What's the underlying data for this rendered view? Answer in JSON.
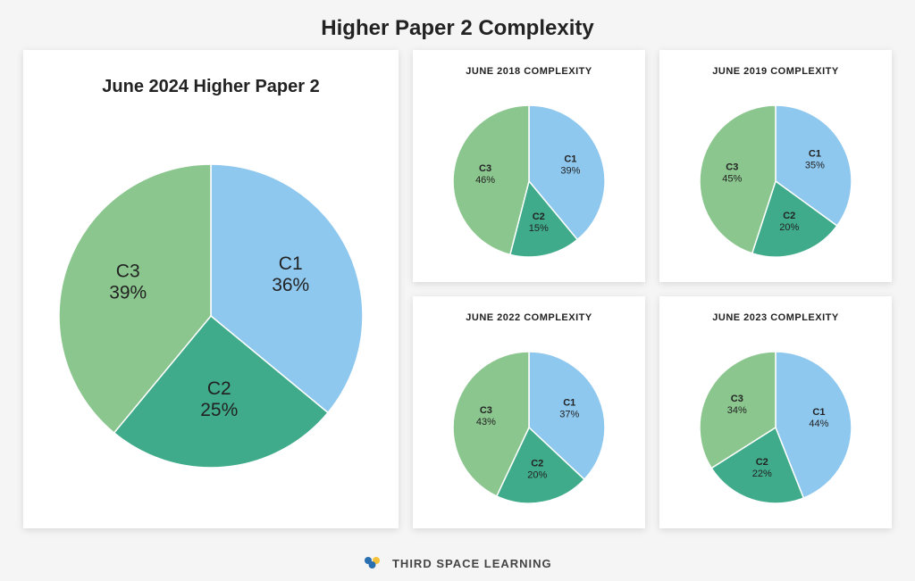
{
  "title": "Higher Paper 2 Complexity",
  "colors": {
    "c1": "#8fc8ef",
    "c2": "#3fab8a",
    "c3": "#8bc68e",
    "card_bg": "#ffffff",
    "page_bg": "#f5f5f5",
    "text": "#222222",
    "slice_border": "#ffffff"
  },
  "main_chart": {
    "title": "June 2024 Higher Paper 2",
    "type": "pie",
    "radius": 170,
    "title_fontsize": 20,
    "label_fontsize": 21,
    "slices": [
      {
        "name": "C1",
        "value": 36,
        "color": "#8fc8ef"
      },
      {
        "name": "C2",
        "value": 25,
        "color": "#3fab8a"
      },
      {
        "name": "C3",
        "value": 39,
        "color": "#8bc68e"
      }
    ]
  },
  "small_charts": [
    {
      "title": "JUNE 2018 COMPLEXITY",
      "type": "pie",
      "radius": 85,
      "title_fontsize": 11,
      "label_fontsize": 11,
      "slices": [
        {
          "name": "C1",
          "value": 39,
          "color": "#8fc8ef"
        },
        {
          "name": "C2",
          "value": 15,
          "color": "#3fab8a"
        },
        {
          "name": "C3",
          "value": 46,
          "color": "#8bc68e"
        }
      ]
    },
    {
      "title": "JUNE 2019 COMPLEXITY",
      "type": "pie",
      "radius": 85,
      "title_fontsize": 11,
      "label_fontsize": 11,
      "slices": [
        {
          "name": "C1",
          "value": 35,
          "color": "#8fc8ef"
        },
        {
          "name": "C2",
          "value": 20,
          "color": "#3fab8a"
        },
        {
          "name": "C3",
          "value": 45,
          "color": "#8bc68e"
        }
      ]
    },
    {
      "title": "JUNE 2022 COMPLEXITY",
      "type": "pie",
      "radius": 85,
      "title_fontsize": 11,
      "label_fontsize": 11,
      "slices": [
        {
          "name": "C1",
          "value": 37,
          "color": "#8fc8ef"
        },
        {
          "name": "C2",
          "value": 20,
          "color": "#3fab8a"
        },
        {
          "name": "C3",
          "value": 43,
          "color": "#8bc68e"
        }
      ]
    },
    {
      "title": "JUNE 2023 COMPLEXITY",
      "type": "pie",
      "radius": 85,
      "title_fontsize": 11,
      "label_fontsize": 11,
      "slices": [
        {
          "name": "C1",
          "value": 44,
          "color": "#8fc8ef"
        },
        {
          "name": "C2",
          "value": 22,
          "color": "#3fab8a"
        },
        {
          "name": "C3",
          "value": 34,
          "color": "#8bc68e"
        }
      ]
    }
  ],
  "footer": {
    "text": "THIRD SPACE LEARNING",
    "logo_colors": [
      "#2a6fb0",
      "#f4c13a",
      "#2a6fb0"
    ]
  }
}
